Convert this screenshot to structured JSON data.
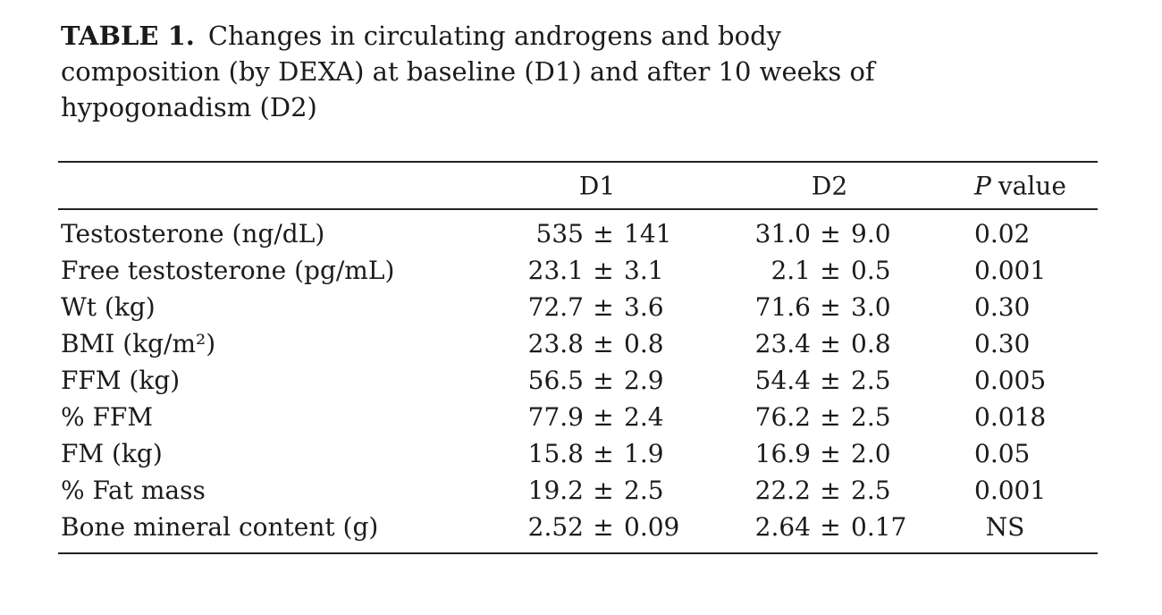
{
  "caption": {
    "label": "TABLE 1.",
    "line1": "Changes in circulating androgens and body",
    "line2": "composition (by DEXA) at baseline (D1) and after 10 weeks of",
    "line3": "hypogonadism (D2)"
  },
  "table": {
    "pm": "±",
    "header": {
      "col1": "D1",
      "col2": "D2",
      "p_italic": "P",
      "p_rest": "value"
    },
    "rows": [
      {
        "label": "Testosterone (ng/dL)",
        "d1_mean": "535",
        "d1_sd": "141",
        "d2_mean": "31.0",
        "d2_sd": "9.0",
        "p": "0.02"
      },
      {
        "label": "Free testosterone (pg/mL)",
        "d1_mean": "23.1",
        "d1_sd": "3.1",
        "d2_mean": "2.1",
        "d2_sd": "0.5",
        "p": "0.001"
      },
      {
        "label": "Wt (kg)",
        "d1_mean": "72.7",
        "d1_sd": "3.6",
        "d2_mean": "71.6",
        "d2_sd": "3.0",
        "p": "0.30"
      },
      {
        "label": "BMI (kg/m²)",
        "d1_mean": "23.8",
        "d1_sd": "0.8",
        "d2_mean": "23.4",
        "d2_sd": "0.8",
        "p": "0.30"
      },
      {
        "label": "FFM (kg)",
        "d1_mean": "56.5",
        "d1_sd": "2.9",
        "d2_mean": "54.4",
        "d2_sd": "2.5",
        "p": "0.005"
      },
      {
        "label": "% FFM",
        "d1_mean": "77.9",
        "d1_sd": "2.4",
        "d2_mean": "76.2",
        "d2_sd": "2.5",
        "p": "0.018"
      },
      {
        "label": "FM (kg)",
        "d1_mean": "15.8",
        "d1_sd": "1.9",
        "d2_mean": "16.9",
        "d2_sd": "2.0",
        "p": "0.05"
      },
      {
        "label": "% Fat mass",
        "d1_mean": "19.2",
        "d1_sd": "2.5",
        "d2_mean": "22.2",
        "d2_sd": "2.5",
        "p": "0.001"
      },
      {
        "label": "Bone mineral content (g)",
        "d1_mean": "2.52",
        "d1_sd": "0.09",
        "d2_mean": "2.64",
        "d2_sd": "0.17",
        "p": "NS"
      }
    ]
  }
}
